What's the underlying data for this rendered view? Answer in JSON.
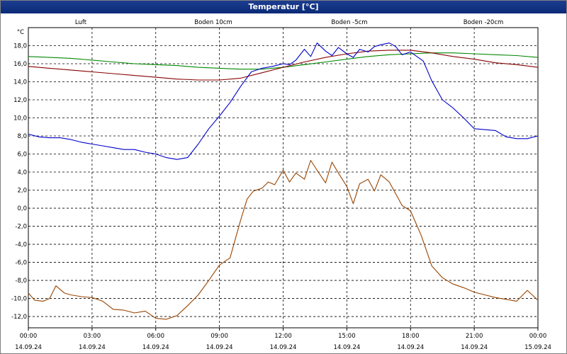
{
  "window": {
    "title": "Temperatur [°C]"
  },
  "chart_data": {
    "type": "line",
    "title": "Temperatur [°C]",
    "ylabel": "°C",
    "xlabel": "",
    "grid": true,
    "legend_position": "top",
    "ylim": [
      -13.25,
      20.0
    ],
    "xlim": [
      0,
      24
    ],
    "y_ticks": [
      18,
      16,
      14,
      12,
      10,
      8,
      6,
      4,
      2,
      0,
      -2,
      -4,
      -6,
      -8,
      -10,
      -12
    ],
    "y_tick_labels": [
      "18,0",
      "16,0",
      "14,0",
      "12,0",
      "10,0",
      "8,0",
      "6,0",
      "4,0",
      "2,0",
      "0,0",
      "-2,0",
      "-4,0",
      "-6,0",
      "-8,0",
      "-10,0",
      "-12,0"
    ],
    "x_ticks": [
      0,
      3,
      6,
      9,
      12,
      15,
      18,
      21,
      24
    ],
    "x_tick_times": [
      "00:00",
      "03:00",
      "06:00",
      "09:00",
      "12:00",
      "15:00",
      "18:00",
      "21:00",
      "00:00"
    ],
    "x_tick_dates": [
      "14.09.24",
      "14.09.24",
      "14.09.24",
      "14.09.24",
      "14.09.24",
      "14.09.24",
      "14.09.24",
      "14.09.24",
      "15.09.24"
    ],
    "series": [
      {
        "name": "Luft",
        "color": "#0000cc",
        "x": [
          0,
          0.5,
          1,
          1.5,
          2,
          2.5,
          3,
          3.5,
          4,
          4.5,
          5,
          5.5,
          6,
          6.5,
          7,
          7.5,
          8,
          8.5,
          9,
          9.5,
          10,
          10.5,
          11,
          11.5,
          12,
          12.3,
          12.6,
          13,
          13.3,
          13.6,
          14,
          14.3,
          14.6,
          15,
          15.3,
          15.6,
          16,
          16.3,
          16.6,
          17,
          17.3,
          17.6,
          18,
          18.3,
          18.6,
          19,
          19.5,
          20,
          20.5,
          21,
          21.5,
          22,
          22.5,
          23,
          23.5,
          24
        ],
        "y": [
          8.2,
          7.9,
          7.8,
          7.8,
          7.6,
          7.3,
          7.1,
          6.9,
          6.7,
          6.5,
          6.5,
          6.2,
          6.0,
          5.6,
          5.4,
          5.6,
          7.1,
          8.8,
          10.2,
          11.7,
          13.5,
          15.1,
          15.5,
          15.7,
          16.0,
          15.9,
          16.4,
          17.6,
          16.8,
          18.3,
          17.4,
          16.9,
          17.8,
          17.1,
          16.7,
          17.6,
          17.3,
          17.9,
          18.1,
          18.3,
          17.9,
          17.0,
          17.3,
          16.8,
          16.3,
          14.1,
          12.0,
          11.1,
          10.0,
          8.8,
          8.7,
          8.6,
          7.9,
          7.7,
          7.7,
          8.0
        ]
      },
      {
        "name": "Boden 10cm",
        "color": "#994400",
        "x": [
          0,
          0.3,
          0.7,
          1,
          1.3,
          1.7,
          2,
          2.5,
          3,
          3.5,
          4,
          4.5,
          5,
          5.5,
          6,
          6.5,
          7,
          7.5,
          8,
          8.5,
          9,
          9.5,
          10,
          10.3,
          10.6,
          11,
          11.3,
          11.6,
          12,
          12.3,
          12.6,
          13,
          13.3,
          13.6,
          14,
          14.3,
          14.6,
          15,
          15.3,
          15.6,
          16,
          16.3,
          16.6,
          17,
          17.3,
          17.6,
          18,
          18.5,
          19,
          19.5,
          20,
          20.5,
          21,
          21.5,
          22,
          22.5,
          23,
          23.5,
          24
        ],
        "y": [
          -9.4,
          -10.2,
          -10.3,
          -10.0,
          -8.6,
          -9.4,
          -9.6,
          -9.8,
          -9.9,
          -10.3,
          -11.2,
          -11.3,
          -11.6,
          -11.4,
          -12.2,
          -12.3,
          -11.9,
          -10.8,
          -9.6,
          -8.0,
          -6.3,
          -5.5,
          -1.3,
          1.0,
          1.9,
          2.2,
          2.9,
          2.6,
          4.2,
          2.9,
          3.9,
          3.2,
          5.3,
          4.2,
          2.8,
          5.1,
          3.9,
          2.4,
          0.5,
          2.7,
          3.2,
          1.9,
          3.7,
          2.9,
          1.6,
          0.3,
          -0.3,
          -3.0,
          -6.4,
          -7.7,
          -8.4,
          -8.8,
          -9.3,
          -9.6,
          -9.9,
          -10.1,
          -10.3,
          -9.1,
          -10.2
        ]
      },
      {
        "name": "Boden -5cm",
        "color": "#880000",
        "x": [
          0,
          1,
          2,
          3,
          4,
          5,
          6,
          7,
          8,
          9,
          10,
          11,
          12,
          13,
          14,
          15,
          16,
          17,
          18,
          19,
          20,
          21,
          22,
          23,
          24
        ],
        "y": [
          15.7,
          15.5,
          15.3,
          15.1,
          14.9,
          14.7,
          14.5,
          14.3,
          14.2,
          14.2,
          14.4,
          15.0,
          15.6,
          16.2,
          16.7,
          17.1,
          17.4,
          17.5,
          17.5,
          17.2,
          16.8,
          16.5,
          16.1,
          15.9,
          15.6
        ]
      },
      {
        "name": "Boden -20cm",
        "color": "#008800",
        "x": [
          0,
          1,
          2,
          3,
          4,
          5,
          6,
          7,
          8,
          9,
          10,
          11,
          12,
          13,
          14,
          15,
          16,
          17,
          18,
          19,
          20,
          21,
          22,
          23,
          24
        ],
        "y": [
          16.8,
          16.7,
          16.6,
          16.4,
          16.2,
          16.0,
          15.9,
          15.8,
          15.6,
          15.5,
          15.4,
          15.4,
          15.6,
          15.9,
          16.2,
          16.5,
          16.8,
          17.0,
          17.1,
          17.2,
          17.2,
          17.1,
          17.0,
          16.9,
          16.7
        ]
      }
    ]
  }
}
